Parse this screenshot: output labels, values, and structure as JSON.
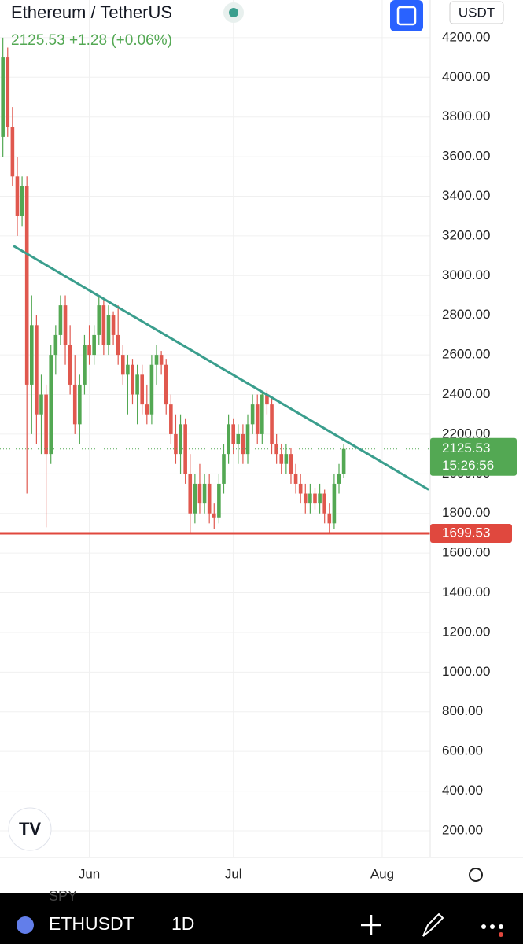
{
  "header": {
    "symbol_name": "Ethereum / TetherUS",
    "change": "+1.28",
    "change_pct": "(+0.06%)",
    "currency": "USDT"
  },
  "toolbar": {
    "symbol": "ETHUSDT",
    "interval": "1D",
    "overlay": "SPY"
  },
  "chart_data": {
    "type": "candlestick",
    "x": [
      0,
      1,
      2,
      3,
      4,
      5,
      6,
      7,
      8,
      9,
      10,
      11,
      12,
      13,
      14,
      15,
      16,
      17,
      18,
      19,
      20,
      21,
      22,
      23,
      24,
      25,
      26,
      27,
      28,
      29,
      30,
      31,
      32,
      33,
      34,
      35,
      36,
      37,
      38,
      39,
      40,
      41,
      42,
      43,
      44,
      45,
      46,
      47,
      48,
      49,
      50,
      51,
      52,
      53,
      54,
      55,
      56,
      57,
      58,
      59,
      60,
      61,
      62,
      63,
      64,
      65,
      66,
      67,
      68,
      69,
      70,
      71
    ],
    "open": [
      3700,
      4100,
      3750,
      3500,
      3300,
      3450,
      2450,
      2750,
      2300,
      2400,
      2100,
      2600,
      2700,
      2850,
      2650,
      2450,
      2250,
      2450,
      2650,
      2600,
      2700,
      2850,
      2650,
      2800,
      2700,
      2600,
      2500,
      2550,
      2400,
      2500,
      2350,
      2300,
      2550,
      2600,
      2550,
      2350,
      2200,
      2100,
      2250,
      2000,
      1800,
      1950,
      1850,
      1950,
      1800,
      1780,
      1950,
      2100,
      2250,
      2150,
      2200,
      2100,
      2250,
      2350,
      2200,
      2400,
      2350,
      2150,
      2100,
      2050,
      2100,
      2000,
      1950,
      1900,
      1850,
      1900,
      1850,
      1900,
      1800,
      1750,
      1950,
      2000
    ],
    "high": [
      4200,
      4150,
      3850,
      3600,
      3500,
      3500,
      2900,
      2800,
      2500,
      2450,
      2650,
      2750,
      2900,
      2900,
      2750,
      2600,
      2500,
      2700,
      2750,
      2750,
      2900,
      2880,
      2850,
      2820,
      2850,
      2650,
      2600,
      2580,
      2550,
      2550,
      2450,
      2600,
      2650,
      2620,
      2580,
      2400,
      2300,
      2300,
      2280,
      2100,
      2000,
      2050,
      2000,
      2000,
      1850,
      2000,
      2150,
      2300,
      2280,
      2250,
      2250,
      2300,
      2400,
      2400,
      2420,
      2420,
      2380,
      2200,
      2150,
      2150,
      2130,
      2050,
      2000,
      1950,
      1950,
      1930,
      1950,
      1920,
      1850,
      2000,
      2050,
      2150
    ],
    "low": [
      3600,
      3700,
      3450,
      3200,
      3250,
      1900,
      2200,
      2150,
      2100,
      1730,
      2050,
      2500,
      2650,
      2550,
      2400,
      2200,
      2150,
      2400,
      2550,
      2550,
      2650,
      2600,
      2600,
      2650,
      2550,
      2450,
      2300,
      2350,
      2250,
      2300,
      2250,
      2250,
      2450,
      2500,
      2300,
      2150,
      2050,
      2000,
      1950,
      1700,
      1750,
      1800,
      1800,
      1750,
      1720,
      1750,
      1900,
      2050,
      2100,
      2050,
      2050,
      2050,
      2200,
      2150,
      2150,
      2300,
      2100,
      2050,
      2000,
      2000,
      1950,
      1900,
      1850,
      1800,
      1800,
      1820,
      1800,
      1750,
      1700,
      1720,
      1900,
      1980
    ],
    "close": [
      4100,
      3750,
      3500,
      3300,
      3450,
      2450,
      2750,
      2300,
      2400,
      2100,
      2600,
      2700,
      2850,
      2650,
      2450,
      2250,
      2450,
      2650,
      2600,
      2700,
      2850,
      2650,
      2800,
      2700,
      2600,
      2500,
      2550,
      2400,
      2500,
      2350,
      2300,
      2550,
      2600,
      2550,
      2350,
      2200,
      2100,
      2250,
      2000,
      1800,
      1950,
      1850,
      1950,
      1800,
      1780,
      1950,
      2100,
      2250,
      2150,
      2200,
      2100,
      2250,
      2350,
      2200,
      2400,
      2350,
      2150,
      2100,
      2050,
      2100,
      2000,
      1950,
      1900,
      1850,
      1900,
      1850,
      1900,
      1800,
      1750,
      1950,
      2000,
      2125.53
    ],
    "up_color": "#53a853",
    "down_color": "#e0584e",
    "xlim": [
      -0.6,
      89
    ],
    "xticks": [
      {
        "value": 18,
        "label": "Jun"
      },
      {
        "value": 48,
        "label": "Jul"
      },
      {
        "value": 79,
        "label": "Aug"
      }
    ],
    "ylim": [
      65,
      4390
    ],
    "yticks": [
      {
        "value": 200,
        "label": "200.00"
      },
      {
        "value": 400,
        "label": "400.00"
      },
      {
        "value": 600,
        "label": "600.00"
      },
      {
        "value": 800,
        "label": "800.00"
      },
      {
        "value": 1000,
        "label": "1000.00"
      },
      {
        "value": 1200,
        "label": "1200.00"
      },
      {
        "value": 1400,
        "label": "1400.00"
      },
      {
        "value": 1600,
        "label": "1600.00"
      },
      {
        "value": 1800,
        "label": "1800.00"
      },
      {
        "value": 2000,
        "label": "2000.00"
      },
      {
        "value": 2200,
        "label": "2200.00"
      },
      {
        "value": 2400,
        "label": "2400.00"
      },
      {
        "value": 2600,
        "label": "2600.00"
      },
      {
        "value": 2800,
        "label": "2800.00"
      },
      {
        "value": 3000,
        "label": "3000.00"
      },
      {
        "value": 3200,
        "label": "3200.00"
      },
      {
        "value": 3400,
        "label": "3400.00"
      },
      {
        "value": 3600,
        "label": "3600.00"
      },
      {
        "value": 3800,
        "label": "3800.00"
      },
      {
        "value": 4000,
        "label": "4000.00"
      },
      {
        "value": 4200,
        "label": "4200.00"
      }
    ],
    "grid": true,
    "last_price": 2125.53,
    "countdown": "15:26:56",
    "horizontal_line": {
      "value": 1699.53,
      "color": "#e0483e"
    },
    "trendline": {
      "x": [
        2.2,
        88.7
      ],
      "y": [
        3150,
        1920
      ],
      "color": "#3a9e8d"
    }
  }
}
